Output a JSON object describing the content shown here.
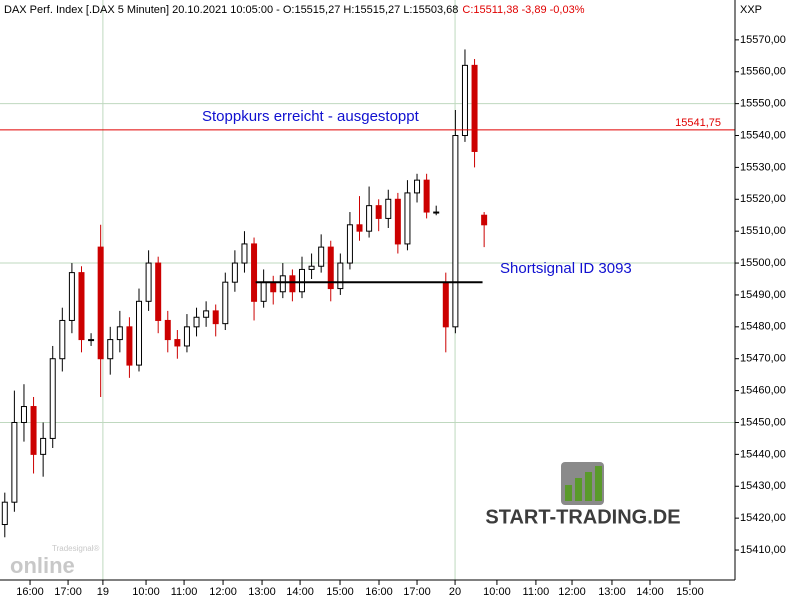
{
  "chart_data": {
    "type": "candlestick",
    "header": {
      "info": "DAX Perf. Index [.DAX  5 Minuten] 20.10.2021 10:05:00 - O:15515,27 H:15515,27 L:15503,68",
      "change": "C:15511,38 -3,89 -0,03%"
    },
    "y_axis_label": "XXP",
    "up_color": "#000000",
    "down_color": "#cc0000",
    "grid": true,
    "x": [
      1.5,
      4.5,
      7.5,
      10.5,
      13.5,
      16.5,
      19.5,
      22.5,
      25.5,
      28.5,
      31.5,
      34.5,
      37.5,
      40.5,
      43.5,
      46.5,
      49.5,
      52.5,
      55.5,
      58.5,
      61.5,
      64.5,
      67.5,
      70.5,
      73.5,
      76.5,
      79.5,
      82.5,
      85.5,
      88.5,
      91.5,
      94.5,
      97.5,
      100.5,
      103.5,
      106.5,
      109.5,
      112.5,
      115.5,
      118.5,
      121.5,
      124.5,
      127.5,
      130.5,
      133.5,
      136.5,
      139.5,
      142.5,
      145.5,
      148.5,
      151.5
    ],
    "open": [
      15418,
      15425,
      15450,
      15455,
      15440,
      15445,
      15470,
      15482,
      15497,
      15476,
      15505,
      15470,
      15476,
      15480,
      15468,
      15488,
      15500,
      15482,
      15476,
      15474,
      15480,
      15483,
      15485,
      15481,
      15494,
      15500,
      15506,
      15488,
      15494,
      15491,
      15496,
      15491,
      15498,
      15499,
      15505,
      15492,
      15500,
      15512,
      15510,
      15518,
      15514,
      15520,
      15506,
      15522,
      15526,
      15516,
      15494,
      15480,
      15540,
      15562,
      15515
    ],
    "high": [
      15428,
      15460,
      15462,
      15458,
      15450,
      15474,
      15486,
      15500,
      15499,
      15478,
      15512,
      15480,
      15485,
      15483,
      15492,
      15504,
      15502,
      15485,
      15479,
      15484,
      15486,
      15488,
      15487,
      15497,
      15504,
      15510,
      15508,
      15498,
      15496,
      15500,
      15498,
      15502,
      15503,
      15509,
      15507,
      15503,
      15516,
      15521,
      15524,
      15520,
      15523,
      15522,
      15526,
      15528,
      15528,
      15518,
      15497,
      15548,
      15567,
      15564,
      15516
    ],
    "low": [
      15414,
      15422,
      15444,
      15434,
      15433,
      15442,
      15466,
      15478,
      15472,
      15474,
      15458,
      15465,
      15472,
      15464,
      15466,
      15485,
      15478,
      15472,
      15470,
      15472,
      15477,
      15480,
      15477,
      15479,
      15491,
      15497,
      15482,
      15486,
      15487,
      15489,
      15488,
      15489,
      15495,
      15497,
      15488,
      15490,
      15498,
      15507,
      15508,
      15510,
      15511,
      15503,
      15504,
      15519,
      15514,
      15515,
      15472,
      15478,
      15538,
      15530,
      15505
    ],
    "close": [
      15425,
      15450,
      15455,
      15440,
      15445,
      15470,
      15482,
      15497,
      15476,
      15476,
      15470,
      15476,
      15480,
      15468,
      15488,
      15500,
      15482,
      15476,
      15474,
      15480,
      15483,
      15485,
      15481,
      15494,
      15500,
      15506,
      15488,
      15494,
      15491,
      15496,
      15491,
      15498,
      15499,
      15505,
      15492,
      15500,
      15512,
      15510,
      15518,
      15514,
      15520,
      15506,
      15522,
      15526,
      15516,
      15516,
      15480,
      15540,
      15562,
      15535,
      15512
    ],
    "xlim": [
      0,
      230
    ],
    "xticks": [
      {
        "value": 9.4,
        "label": "16:00"
      },
      {
        "value": 21.3,
        "label": "17:00"
      },
      {
        "value": 32.2,
        "label": "19"
      },
      {
        "value": 45.7,
        "label": "10:00"
      },
      {
        "value": 57.6,
        "label": "11:00"
      },
      {
        "value": 69.8,
        "label": "12:00"
      },
      {
        "value": 82,
        "label": "13:00"
      },
      {
        "value": 93.9,
        "label": "14:00"
      },
      {
        "value": 106.4,
        "label": "15:00"
      },
      {
        "value": 118.6,
        "label": "16:00"
      },
      {
        "value": 130.5,
        "label": "17:00"
      },
      {
        "value": 142.4,
        "label": "20"
      },
      {
        "value": 155.5,
        "label": "10:00"
      },
      {
        "value": 167.7,
        "label": "11:00"
      },
      {
        "value": 179,
        "label": "12:00"
      },
      {
        "value": 191.5,
        "label": "13:00"
      },
      {
        "value": 203.4,
        "label": "14:00"
      },
      {
        "value": 215.9,
        "label": "15:00"
      }
    ],
    "ylim": [
      15400.6,
      15582.5
    ],
    "yticks": [
      {
        "value": 15410,
        "label": "15410,00"
      },
      {
        "value": 15420,
        "label": "15420,00"
      },
      {
        "value": 15430,
        "label": "15430,00"
      },
      {
        "value": 15440,
        "label": "15440,00"
      },
      {
        "value": 15450,
        "label": "15450,00"
      },
      {
        "value": 15460,
        "label": "15460,00"
      },
      {
        "value": 15470,
        "label": "15470,00"
      },
      {
        "value": 15480,
        "label": "15480,00"
      },
      {
        "value": 15490,
        "label": "15490,00"
      },
      {
        "value": 15500,
        "label": "15500,00"
      },
      {
        "value": 15510,
        "label": "15510,00"
      },
      {
        "value": 15520,
        "label": "15520,00"
      },
      {
        "value": 15530,
        "label": "15530,00"
      },
      {
        "value": 15540,
        "label": "15540,00"
      },
      {
        "value": 15550,
        "label": "15550,00"
      },
      {
        "value": 15560,
        "label": "15560,00"
      },
      {
        "value": 15570,
        "label": "15570,00"
      }
    ],
    "stop_line": {
      "value": 15541.75,
      "label": "15541,75",
      "color": "#e00000",
      "annotation": "Stoppkurs erreicht - ausgestoppt"
    },
    "signal_line": {
      "value": 15494,
      "x": [
        80,
        151
      ],
      "color": "#000000",
      "annotation": "Shortsignal ID 3093"
    },
    "branding": {
      "site": "START-TRADING.DE",
      "vendor": "online",
      "vendor_sub": "Tradesignal®"
    }
  }
}
